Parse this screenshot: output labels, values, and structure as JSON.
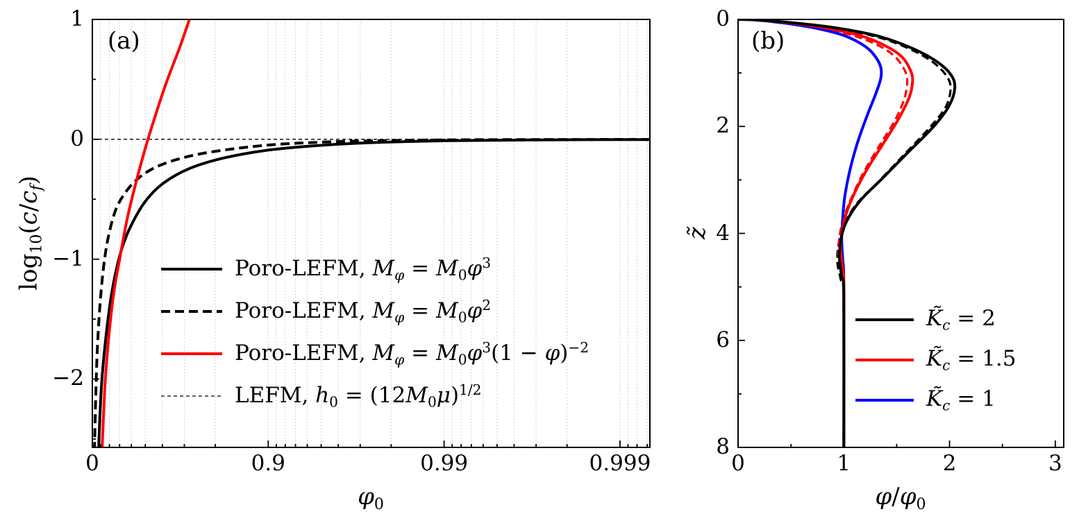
{
  "figure": {
    "panel_a_label": "(a)",
    "panel_b_label": "(b)"
  },
  "chart_data": [
    {
      "id": "a",
      "type": "line",
      "title": "",
      "x_scale": "axis position u = -log10(1 - phi0)",
      "xlabel": "phi_0",
      "ylabel": "log10(c/c_f)",
      "xlabel_segments": [
        [
          "i",
          "φ"
        ],
        [
          "sub",
          "0"
        ]
      ],
      "ylabel_segments": [
        [
          "t",
          "log"
        ],
        [
          "sub",
          "10"
        ],
        [
          "t",
          "("
        ],
        [
          "i",
          "c"
        ],
        [
          "t",
          "/"
        ],
        [
          "i",
          "c"
        ],
        [
          "subi",
          "f"
        ],
        [
          "t",
          ")"
        ]
      ],
      "xlim_u": [
        0,
        3.17
      ],
      "ylim": [
        -2.57,
        1
      ],
      "grid": "vertical dotted log-minor gridlines",
      "x_ticks": [
        {
          "u": 0,
          "label": "0",
          "phi0": 0
        },
        {
          "u": 1,
          "label": "0.9",
          "phi0": 0.9
        },
        {
          "u": 2,
          "label": "0.99",
          "phi0": 0.99
        },
        {
          "u": 3,
          "label": "0.999",
          "phi0": 0.999
        }
      ],
      "y_ticks": [
        {
          "v": 1,
          "label": "1"
        },
        {
          "v": 0,
          "label": "0"
        },
        {
          "v": -1,
          "label": "−1"
        },
        {
          "v": -2,
          "label": "−2"
        }
      ],
      "y_minor_ticks": [
        0.5,
        -0.5,
        -1.5,
        -2.5
      ],
      "series": [
        {
          "name": "lefm",
          "color": "#000000",
          "width": 1.3,
          "dash": "5 4",
          "legend_rank": 4,
          "legend_segments": [
            [
              "t",
              "LEFM, "
            ],
            [
              "i",
              "h"
            ],
            [
              "sub",
              "0"
            ],
            [
              "t",
              " = (12"
            ],
            [
              "i",
              "M"
            ],
            [
              "sub",
              "0"
            ],
            [
              "i",
              "μ"
            ],
            [
              "t",
              ")"
            ],
            [
              "sup",
              "1/2"
            ]
          ],
          "points_u_y": [
            [
              0,
              0
            ],
            [
              3.17,
              0
            ]
          ]
        },
        {
          "name": "poro-lefm-M0phi3",
          "color": "#000000",
          "width": 4,
          "dash": null,
          "legend_rank": 1,
          "legend_segments": [
            [
              "t",
              "Poro-LEFM, "
            ],
            [
              "i",
              "M"
            ],
            [
              "subi",
              "φ"
            ],
            [
              "t",
              " = "
            ],
            [
              "i",
              "M"
            ],
            [
              "sub",
              "0"
            ],
            [
              "i",
              "φ"
            ],
            [
              "sup",
              "3"
            ]
          ],
          "points_u_y": [
            [
              0.035,
              -2.6
            ],
            [
              0.05,
              -2.1
            ],
            [
              0.07,
              -1.75
            ],
            [
              0.1,
              -1.38
            ],
            [
              0.13,
              -1.13
            ],
            [
              0.17,
              -0.9
            ],
            [
              0.22,
              -0.72
            ],
            [
              0.3,
              -0.52
            ],
            [
              0.4,
              -0.37
            ],
            [
              0.55,
              -0.245
            ],
            [
              0.75,
              -0.155
            ],
            [
              1.0,
              -0.09
            ],
            [
              1.3,
              -0.05
            ],
            [
              1.6,
              -0.027
            ],
            [
              2.0,
              -0.012
            ],
            [
              2.5,
              -0.005
            ],
            [
              3.17,
              -0.002
            ]
          ]
        },
        {
          "name": "poro-lefm-M0phi2",
          "color": "#000000",
          "width": 4,
          "dash": "13 7",
          "legend_rank": 2,
          "legend_segments": [
            [
              "t",
              "Poro-LEFM, "
            ],
            [
              "i",
              "M"
            ],
            [
              "subi",
              "φ"
            ],
            [
              "t",
              " = "
            ],
            [
              "i",
              "M"
            ],
            [
              "sub",
              "0"
            ],
            [
              "i",
              "φ"
            ],
            [
              "sup",
              "2"
            ]
          ],
          "points_u_y": [
            [
              0.012,
              -2.6
            ],
            [
              0.02,
              -2.1
            ],
            [
              0.03,
              -1.7
            ],
            [
              0.045,
              -1.35
            ],
            [
              0.065,
              -1.05
            ],
            [
              0.09,
              -0.82
            ],
            [
              0.13,
              -0.6
            ],
            [
              0.18,
              -0.46
            ],
            [
              0.25,
              -0.34
            ],
            [
              0.35,
              -0.24
            ],
            [
              0.5,
              -0.16
            ],
            [
              0.7,
              -0.1
            ],
            [
              1.0,
              -0.048
            ],
            [
              1.3,
              -0.024
            ],
            [
              1.6,
              -0.012
            ],
            [
              2.0,
              -0.005
            ],
            [
              2.5,
              -0.002
            ],
            [
              3.17,
              -0.001
            ]
          ]
        },
        {
          "name": "poro-lefm-M0phi3-1mphi-2",
          "color": "#ff0000",
          "width": 4,
          "dash": null,
          "legend_rank": 3,
          "legend_segments": [
            [
              "t",
              "Poro-LEFM, "
            ],
            [
              "i",
              "M"
            ],
            [
              "subi",
              "φ"
            ],
            [
              "t",
              " = "
            ],
            [
              "i",
              "M"
            ],
            [
              "sub",
              "0"
            ],
            [
              "i",
              "φ"
            ],
            [
              "sup",
              "3"
            ],
            [
              "t",
              "(1 − "
            ],
            [
              "i",
              "φ"
            ],
            [
              "t",
              ")"
            ],
            [
              "sup",
              "−2"
            ]
          ],
          "points_u_y": [
            [
              0.055,
              -2.6
            ],
            [
              0.07,
              -2.1
            ],
            [
              0.09,
              -1.7
            ],
            [
              0.12,
              -1.3
            ],
            [
              0.155,
              -1.0
            ],
            [
              0.2,
              -0.65
            ],
            [
              0.25,
              -0.35
            ],
            [
              0.3,
              -0.08
            ],
            [
              0.35,
              0.16
            ],
            [
              0.42,
              0.47
            ],
            [
              0.5,
              0.78
            ],
            [
              0.57,
              1.08
            ]
          ]
        }
      ]
    },
    {
      "id": "b",
      "type": "line",
      "title": "",
      "xlabel": "phi/phi_0",
      "ylabel": "z-tilde",
      "xlabel_segments": [
        [
          "i",
          "φ"
        ],
        [
          "t",
          "/"
        ],
        [
          "i",
          "φ"
        ],
        [
          "sub",
          "0"
        ]
      ],
      "ylabel_segments": [
        [
          "i",
          "z̃"
        ]
      ],
      "xlim": [
        0,
        3.08
      ],
      "ylim_z": [
        0,
        8
      ],
      "y_axis_inverted": true,
      "x_ticks": [
        {
          "v": 0,
          "label": "0"
        },
        {
          "v": 1,
          "label": "1"
        },
        {
          "v": 2,
          "label": "2"
        },
        {
          "v": 3,
          "label": "3"
        }
      ],
      "y_ticks": [
        {
          "v": 0,
          "label": "0"
        },
        {
          "v": 2,
          "label": "2"
        },
        {
          "v": 4,
          "label": "4"
        },
        {
          "v": 6,
          "label": "6"
        },
        {
          "v": 8,
          "label": "8"
        }
      ],
      "x_minor_ticks": [
        0.5,
        1.5,
        2.5
      ],
      "y_minor_ticks": [
        1,
        3,
        5,
        7
      ],
      "series": [
        {
          "name": "Kc2-dashed",
          "color": "#000000",
          "width": 3.2,
          "dash": "11 6",
          "points_x_z": [
            [
              0,
              0
            ],
            [
              0.2,
              0.01
            ],
            [
              0.5,
              0.06
            ],
            [
              0.9,
              0.16
            ],
            [
              1.3,
              0.32
            ],
            [
              1.6,
              0.53
            ],
            [
              1.83,
              0.78
            ],
            [
              1.97,
              1.05
            ],
            [
              2.01,
              1.3
            ],
            [
              1.96,
              1.65
            ],
            [
              1.8,
              2.05
            ],
            [
              1.56,
              2.55
            ],
            [
              1.32,
              3.05
            ],
            [
              1.12,
              3.45
            ],
            [
              1.0,
              3.85
            ],
            [
              0.95,
              4.2
            ],
            [
              0.94,
              4.55
            ],
            [
              0.97,
              4.85
            ],
            [
              1.0,
              5.25
            ],
            [
              1.0,
              8.0
            ]
          ]
        },
        {
          "name": "Kc15-dashed",
          "color": "#ff0000",
          "width": 3.2,
          "dash": "11 6",
          "points_x_z": [
            [
              0,
              0
            ],
            [
              0.18,
              0.01
            ],
            [
              0.45,
              0.06
            ],
            [
              0.78,
              0.16
            ],
            [
              1.12,
              0.32
            ],
            [
              1.36,
              0.52
            ],
            [
              1.5,
              0.73
            ],
            [
              1.58,
              0.97
            ],
            [
              1.6,
              1.18
            ],
            [
              1.57,
              1.5
            ],
            [
              1.48,
              1.9
            ],
            [
              1.34,
              2.35
            ],
            [
              1.19,
              2.85
            ],
            [
              1.08,
              3.3
            ],
            [
              1.0,
              3.7
            ],
            [
              0.96,
              4.05
            ],
            [
              0.95,
              4.4
            ],
            [
              0.98,
              4.75
            ],
            [
              1.0,
              5.15
            ],
            [
              1.0,
              8.0
            ]
          ]
        },
        {
          "name": "Kc1",
          "color": "#0000ff",
          "width": 4,
          "dash": null,
          "legend_rank": 3,
          "legend_segments": [
            [
              "i",
              "K̃"
            ],
            [
              "subi",
              "c"
            ],
            [
              "t",
              " = 1"
            ]
          ],
          "points_x_z": [
            [
              0,
              0
            ],
            [
              0.15,
              0.01
            ],
            [
              0.4,
              0.06
            ],
            [
              0.7,
              0.15
            ],
            [
              1.0,
              0.3
            ],
            [
              1.2,
              0.5
            ],
            [
              1.3,
              0.7
            ],
            [
              1.35,
              0.9
            ],
            [
              1.35,
              1.1
            ],
            [
              1.3,
              1.4
            ],
            [
              1.22,
              1.8
            ],
            [
              1.13,
              2.3
            ],
            [
              1.06,
              2.8
            ],
            [
              1.01,
              3.3
            ],
            [
              0.99,
              3.7
            ],
            [
              0.98,
              4.1
            ],
            [
              0.99,
              4.5
            ],
            [
              1.0,
              5.0
            ],
            [
              1.0,
              8.0
            ]
          ]
        },
        {
          "name": "Kc15",
          "color": "#ff0000",
          "width": 4,
          "dash": null,
          "legend_rank": 2,
          "legend_segments": [
            [
              "i",
              "K̃"
            ],
            [
              "subi",
              "c"
            ],
            [
              "t",
              " = 1.5"
            ]
          ],
          "points_x_z": [
            [
              0,
              0
            ],
            [
              0.18,
              0.01
            ],
            [
              0.47,
              0.06
            ],
            [
              0.8,
              0.15
            ],
            [
              1.15,
              0.3
            ],
            [
              1.4,
              0.5
            ],
            [
              1.55,
              0.7
            ],
            [
              1.63,
              0.95
            ],
            [
              1.65,
              1.15
            ],
            [
              1.62,
              1.45
            ],
            [
              1.52,
              1.85
            ],
            [
              1.38,
              2.3
            ],
            [
              1.22,
              2.8
            ],
            [
              1.1,
              3.25
            ],
            [
              1.02,
              3.65
            ],
            [
              0.98,
              4.0
            ],
            [
              0.97,
              4.3
            ],
            [
              0.99,
              4.7
            ],
            [
              1.0,
              5.1
            ],
            [
              1.0,
              8.0
            ]
          ]
        },
        {
          "name": "Kc2",
          "color": "#000000",
          "width": 4,
          "dash": null,
          "legend_rank": 1,
          "legend_segments": [
            [
              "i",
              "K̃"
            ],
            [
              "subi",
              "c"
            ],
            [
              "t",
              " = 2"
            ]
          ],
          "points_x_z": [
            [
              0,
              0
            ],
            [
              0.2,
              0.01
            ],
            [
              0.5,
              0.06
            ],
            [
              0.9,
              0.15
            ],
            [
              1.3,
              0.3
            ],
            [
              1.6,
              0.5
            ],
            [
              1.85,
              0.75
            ],
            [
              2.0,
              1.0
            ],
            [
              2.05,
              1.25
            ],
            [
              2.0,
              1.6
            ],
            [
              1.85,
              2.0
            ],
            [
              1.6,
              2.5
            ],
            [
              1.35,
              3.0
            ],
            [
              1.15,
              3.4
            ],
            [
              1.02,
              3.8
            ],
            [
              0.97,
              4.15
            ],
            [
              0.96,
              4.5
            ],
            [
              0.98,
              4.8
            ],
            [
              1.0,
              5.2
            ],
            [
              1.0,
              8.0
            ]
          ]
        }
      ]
    }
  ]
}
